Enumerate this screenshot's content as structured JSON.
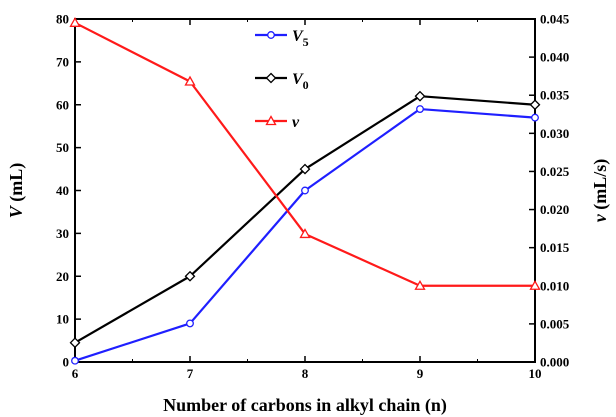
{
  "chart_data": {
    "type": "line",
    "x": [
      6,
      7,
      8,
      9,
      10
    ],
    "xlabel": "Number of carbons in alkyl chain (n)",
    "xlim": [
      6,
      10
    ],
    "xticks": [
      "6",
      "7",
      "8",
      "9",
      "10"
    ],
    "ylabel_left": {
      "symbol": "V",
      "unit": " (mL)"
    },
    "ylim_left": [
      0,
      80
    ],
    "yticks_left": [
      "0",
      "10",
      "20",
      "30",
      "40",
      "50",
      "60",
      "70",
      "80"
    ],
    "ylabel_right": {
      "symbol": "v",
      "unit": " (mL/s)"
    },
    "ylim_right": [
      0,
      0.045
    ],
    "yticks_right": [
      "0.000",
      "0.005",
      "0.010",
      "0.015",
      "0.020",
      "0.025",
      "0.030",
      "0.035",
      "0.040",
      "0.045"
    ],
    "grid": false,
    "legend_position": "top-center",
    "series": [
      {
        "name": "V5",
        "label_main": "V",
        "label_sub": "5",
        "axis": "left",
        "color": "#1f1fff",
        "marker": "circle",
        "values": [
          0.3,
          9,
          40,
          59,
          57
        ]
      },
      {
        "name": "V0",
        "label_main": "V",
        "label_sub": "0",
        "axis": "left",
        "color": "#000000",
        "marker": "diamond",
        "values": [
          4.5,
          20,
          45,
          62,
          60
        ]
      },
      {
        "name": "v",
        "label_main": "v",
        "label_sub": "",
        "axis": "right",
        "color": "#ff1a1a",
        "marker": "triangle",
        "values": [
          0.0445,
          0.0368,
          0.0168,
          0.01,
          0.01
        ]
      }
    ]
  }
}
